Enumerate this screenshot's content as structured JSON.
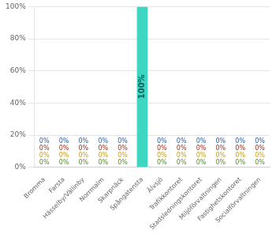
{
  "chart_data": {
    "type": "bar",
    "categories": [
      "Bromma",
      "Farsta",
      "Hässelby/Vällinby",
      "Norrmalm",
      "Skarpnäck",
      "Spångatensta",
      "Älvsjö",
      "Trafikkontoret",
      "Stadsledningskontoret",
      "Miljöförvaltningen",
      "Fastighetskontoret",
      "Socialförvaltningen"
    ],
    "values": [
      0,
      0,
      0,
      0,
      0,
      100,
      0,
      0,
      0,
      0,
      0,
      0
    ],
    "color": "#3dd6c0",
    "ylim": [
      0,
      100
    ],
    "yticks": [
      {
        "value": 0,
        "label": "0%"
      },
      {
        "value": 20,
        "label": "20%"
      },
      {
        "value": 40,
        "label": "40%"
      },
      {
        "value": 60,
        "label": "60%"
      },
      {
        "value": 80,
        "label": "80%"
      },
      {
        "value": 100,
        "label": "100%"
      }
    ],
    "grid": true,
    "annotations": [
      {
        "text": "0%",
        "category": "Bromma",
        "color": "#5b8c35"
      },
      {
        "text": "0%",
        "category": "Bromma",
        "color": "#c8a020"
      },
      {
        "text": "0%",
        "category": "Bromma",
        "color": "#a03020"
      },
      {
        "text": "0%",
        "category": "Bromma",
        "color": "#3060a0"
      },
      {
        "text": "0%",
        "category": "Farsta",
        "color": "#5b8c35"
      },
      {
        "text": "0%",
        "category": "Farsta",
        "color": "#c8a020"
      },
      {
        "text": "0%",
        "category": "Farsta",
        "color": "#a03020"
      },
      {
        "text": "0%",
        "category": "Farsta",
        "color": "#3060a0"
      },
      {
        "text": "0%",
        "category": "Hässelby/Vällinby",
        "color": "#5b8c35"
      },
      {
        "text": "0%",
        "category": "Hässelby/Vällinby",
        "color": "#c8a020"
      },
      {
        "text": "0%",
        "category": "Hässelby/Vällinby",
        "color": "#a03020"
      },
      {
        "text": "0%",
        "category": "Hässelby/Vällinby",
        "color": "#3060a0"
      },
      {
        "text": "0%",
        "category": "Norrmalm",
        "color": "#5b8c35"
      },
      {
        "text": "0%",
        "category": "Norrmalm",
        "color": "#c8a020"
      },
      {
        "text": "0%",
        "category": "Norrmalm",
        "color": "#a03020"
      },
      {
        "text": "0%",
        "category": "Norrmalm",
        "color": "#3060a0"
      },
      {
        "text": "0%",
        "category": "Skarpnäck",
        "color": "#5b8c35"
      },
      {
        "text": "0%",
        "category": "Skarpnäck",
        "color": "#c8a020"
      },
      {
        "text": "0%",
        "category": "Skarpnäck",
        "color": "#a03020"
      },
      {
        "text": "0%",
        "category": "Skarpnäck",
        "color": "#3060a0"
      },
      {
        "text": "100%",
        "category": "Spångatensta",
        "color": "#006060"
      },
      {
        "text": "0%",
        "category": "Älvsjö",
        "color": "#5b8c35"
      },
      {
        "text": "0%",
        "category": "Älvsjö",
        "color": "#c8a020"
      },
      {
        "text": "0%",
        "category": "Älvsjö",
        "color": "#a03020"
      },
      {
        "text": "0%",
        "category": "Älvsjö",
        "color": "#3060a0"
      },
      {
        "text": "0%",
        "category": "Trafikkontoret",
        "color": "#5b8c35"
      },
      {
        "text": "0%",
        "category": "Trafikkontoret",
        "color": "#c8a020"
      },
      {
        "text": "0%",
        "category": "Trafikkontoret",
        "color": "#a03020"
      },
      {
        "text": "0%",
        "category": "Trafikkontoret",
        "color": "#3060a0"
      },
      {
        "text": "0%",
        "category": "Stadsledningskontoret",
        "color": "#5b8c35"
      },
      {
        "text": "0%",
        "category": "Stadsledningskontoret",
        "color": "#c8a020"
      },
      {
        "text": "0%",
        "category": "Stadsledningskontoret",
        "color": "#a03020"
      },
      {
        "text": "0%",
        "category": "Stadsledningskontoret",
        "color": "#3060a0"
      },
      {
        "text": "0%",
        "category": "Miljöförvaltningen",
        "color": "#5b8c35"
      },
      {
        "text": "0%",
        "category": "Miljöförvaltningen",
        "color": "#c8a020"
      },
      {
        "text": "0%",
        "category": "Miljöförvaltningen",
        "color": "#a03020"
      },
      {
        "text": "0%",
        "category": "Miljöförvaltningen",
        "color": "#3060a0"
      },
      {
        "text": "0%",
        "category": "Fastighetskontoret",
        "color": "#5b8c35"
      },
      {
        "text": "0%",
        "category": "Fastighetskontoret",
        "color": "#c8a020"
      },
      {
        "text": "0%",
        "category": "Fastighetskontoret",
        "color": "#a03020"
      },
      {
        "text": "0%",
        "category": "Fastighetskontoret",
        "color": "#3060a0"
      },
      {
        "text": "0%",
        "category": "Socialförvaltningen",
        "color": "#5b8c35"
      },
      {
        "text": "0%",
        "category": "Socialförvaltningen",
        "color": "#c8a020"
      },
      {
        "text": "0%",
        "category": "Socialförvaltningen",
        "color": "#a03020"
      },
      {
        "text": "0%",
        "category": "Socialförvaltningen",
        "color": "#3060a0"
      }
    ]
  }
}
